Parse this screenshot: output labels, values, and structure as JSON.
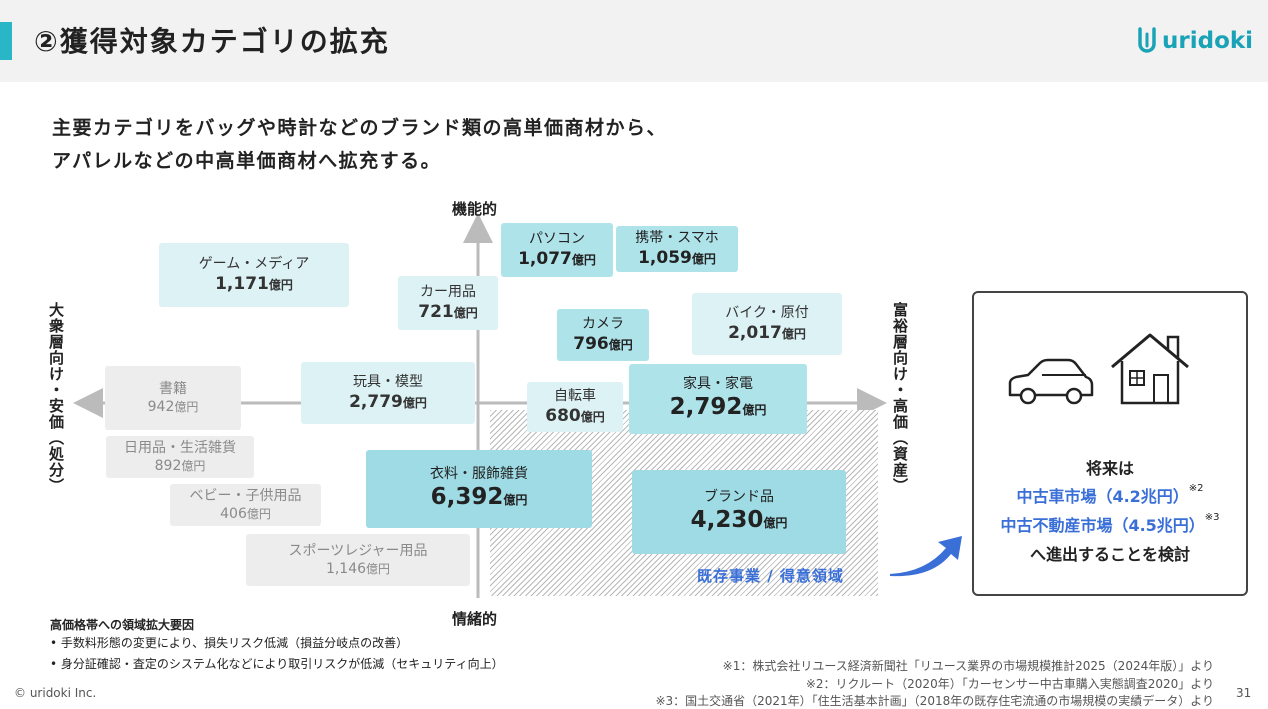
{
  "header": {
    "title": "②獲得対象カテゴリの拡充",
    "logo_text": "uridoki"
  },
  "lead": {
    "line1": "主要カテゴリをバッグや時計などのブランド類の高単価商材から、",
    "line2": "アパレルなどの中高単価商材へ拡充する。"
  },
  "axes": {
    "top": "機能的",
    "bottom": "情緒的",
    "left": "大衆層向け・安価（処分）",
    "right": "富裕層向け・高価（資産）"
  },
  "unit": "億円",
  "categories": [
    {
      "name": "ゲーム・メディア",
      "value": "1,171"
    },
    {
      "name": "カー用品",
      "value": "721"
    },
    {
      "name": "パソコン",
      "value": "1,077"
    },
    {
      "name": "携帯・スマホ",
      "value": "1,059"
    },
    {
      "name": "カメラ",
      "value": "796"
    },
    {
      "name": "バイク・原付",
      "value": "2,017"
    },
    {
      "name": "書籍",
      "value": "942"
    },
    {
      "name": "玩具・模型",
      "value": "2,779"
    },
    {
      "name": "自転車",
      "value": "680"
    },
    {
      "name": "家具・家電",
      "value": "2,792"
    },
    {
      "name": "日用品・生活雑貨",
      "value": "892"
    },
    {
      "name": "ベビー・子供用品",
      "value": "406"
    },
    {
      "name": "衣料・服飾雑貨",
      "value": "6,392"
    },
    {
      "name": "ブランド品",
      "value": "4,230"
    },
    {
      "name": "スポーツレジャー用品",
      "value": "1,146"
    }
  ],
  "existing_label": "既存事業 / 得意領域",
  "future": {
    "line1": "将来は",
    "car": "中古車市場（4.2兆円）",
    "car_note": "※2",
    "realestate": "中古不動産市場（4.5兆円）",
    "realestate_note": "※3",
    "line4": "へ進出することを検討"
  },
  "notes": {
    "heading": "高価格帯への領域拡大要因",
    "items": [
      "• 手数料形態の変更により、損失リスク低減（損益分岐点の改善）",
      "• 身分証確認・査定のシステム化などにより取引リスクが低減（セキュリティ向上）"
    ]
  },
  "sources": [
    "※1：株式会社リユース経済新聞社「リユース業界の市場規模推計2025（2024年版）」より",
    "※2：リクルート（2020年）「カーセンサー中古車購入実態調査2020」より",
    "※3：国土交通省（2021年）「住生活基本計画」（2018年の既存住宅流通の市場規模の実績データ）より"
  ],
  "footer": {
    "copyright": "© uridoki Inc.",
    "page": "31"
  },
  "colors": {
    "accent": "#29b6c6",
    "blue": "#3a6fd8",
    "light": "#ddf2f5",
    "mid": "#aee3ea",
    "grey": "#ededed"
  }
}
